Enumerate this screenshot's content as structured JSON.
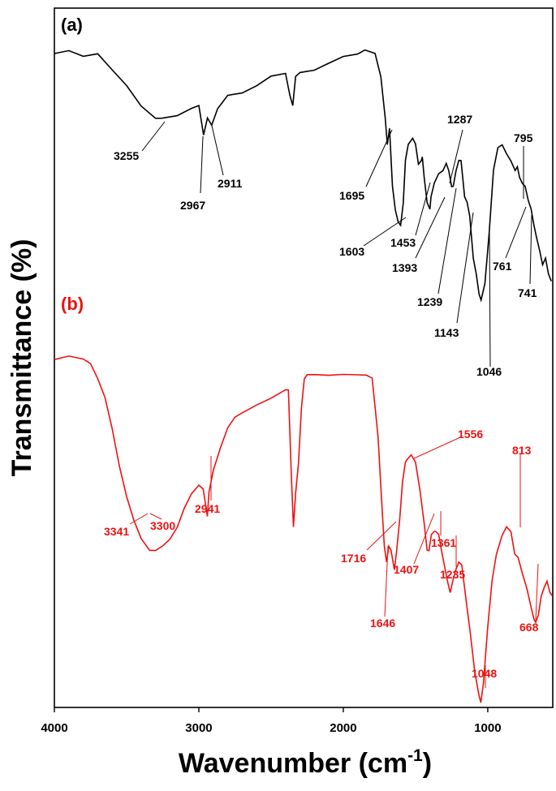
{
  "chart_data": {
    "type": "line",
    "xlabel": "Wavenumber (cm",
    "xlabel_sup": "-1",
    "xlabel_end": ")",
    "ylabel": "Transmittance (%)",
    "xlim": [
      4000,
      550
    ],
    "x_reversed": true,
    "xticks": [
      4000,
      3000,
      2000,
      1000
    ],
    "xtick_labels": [
      "4000",
      "3000",
      "2000",
      "1000"
    ],
    "grid": false,
    "series": [
      {
        "panel_label": "(a)",
        "color": "#000000",
        "points": [
          [
            4000,
            58
          ],
          [
            3900,
            59
          ],
          [
            3800,
            57
          ],
          [
            3700,
            58
          ],
          [
            3600,
            53
          ],
          [
            3500,
            48
          ],
          [
            3400,
            42
          ],
          [
            3300,
            38
          ],
          [
            3255,
            38
          ],
          [
            3150,
            39
          ],
          [
            3050,
            41
          ],
          [
            3000,
            42
          ],
          [
            2967,
            33
          ],
          [
            2940,
            38
          ],
          [
            2911,
            36
          ],
          [
            2870,
            41
          ],
          [
            2800,
            45
          ],
          [
            2700,
            46
          ],
          [
            2600,
            48
          ],
          [
            2500,
            51
          ],
          [
            2400,
            52
          ],
          [
            2370,
            45
          ],
          [
            2350,
            42
          ],
          [
            2330,
            51
          ],
          [
            2300,
            52
          ],
          [
            2200,
            53
          ],
          [
            2100,
            55
          ],
          [
            2000,
            57
          ],
          [
            1900,
            58
          ],
          [
            1850,
            59
          ],
          [
            1780,
            58
          ],
          [
            1740,
            51
          ],
          [
            1710,
            38
          ],
          [
            1695,
            30
          ],
          [
            1680,
            35
          ],
          [
            1660,
            17
          ],
          [
            1640,
            10
          ],
          [
            1620,
            6
          ],
          [
            1603,
            5
          ],
          [
            1585,
            12
          ],
          [
            1570,
            25
          ],
          [
            1550,
            30
          ],
          [
            1520,
            32
          ],
          [
            1500,
            30
          ],
          [
            1480,
            24
          ],
          [
            1460,
            25
          ],
          [
            1453,
            26
          ],
          [
            1440,
            20
          ],
          [
            1420,
            12
          ],
          [
            1400,
            10
          ],
          [
            1393,
            14
          ],
          [
            1370,
            18
          ],
          [
            1340,
            21
          ],
          [
            1310,
            22
          ],
          [
            1287,
            24
          ],
          [
            1270,
            22
          ],
          [
            1250,
            17
          ],
          [
            1239,
            17
          ],
          [
            1220,
            22
          ],
          [
            1200,
            25
          ],
          [
            1185,
            25
          ],
          [
            1160,
            14
          ],
          [
            1143,
            12
          ],
          [
            1125,
            8
          ],
          [
            1100,
            -5
          ],
          [
            1080,
            -10
          ],
          [
            1060,
            -16
          ],
          [
            1046,
            -18
          ],
          [
            1020,
            -13
          ],
          [
            990,
            3
          ],
          [
            960,
            22
          ],
          [
            930,
            29
          ],
          [
            900,
            30
          ],
          [
            870,
            27
          ],
          [
            840,
            25
          ],
          [
            810,
            22
          ],
          [
            795,
            23
          ],
          [
            780,
            20
          ],
          [
            761,
            18
          ],
          [
            741,
            17
          ],
          [
            720,
            13
          ],
          [
            700,
            10
          ],
          [
            680,
            5
          ],
          [
            660,
            1
          ],
          [
            640,
            -3
          ],
          [
            620,
            -7
          ],
          [
            600,
            -5
          ],
          [
            580,
            -10
          ],
          [
            560,
            -12
          ]
        ],
        "annotations": [
          "3255",
          "2967",
          "2911",
          "1695",
          "1603",
          "1453",
          "1393",
          "1287",
          "1239",
          "1143",
          "1046",
          "795",
          "761",
          "741"
        ]
      },
      {
        "panel_label": "(b)",
        "color": "#ee1111",
        "points": [
          [
            4000,
            60
          ],
          [
            3900,
            61
          ],
          [
            3800,
            60
          ],
          [
            3750,
            59
          ],
          [
            3700,
            55
          ],
          [
            3650,
            50
          ],
          [
            3600,
            42
          ],
          [
            3550,
            32
          ],
          [
            3500,
            24
          ],
          [
            3450,
            18
          ],
          [
            3400,
            13
          ],
          [
            3341,
            10
          ],
          [
            3300,
            10
          ],
          [
            3250,
            11
          ],
          [
            3200,
            13
          ],
          [
            3150,
            16
          ],
          [
            3100,
            21
          ],
          [
            3050,
            25
          ],
          [
            3000,
            27
          ],
          [
            2970,
            26
          ],
          [
            2941,
            19
          ],
          [
            2930,
            25
          ],
          [
            2900,
            31
          ],
          [
            2850,
            37
          ],
          [
            2800,
            42
          ],
          [
            2750,
            45
          ],
          [
            2700,
            46
          ],
          [
            2600,
            48
          ],
          [
            2500,
            50
          ],
          [
            2400,
            52
          ],
          [
            2380,
            52
          ],
          [
            2360,
            30
          ],
          [
            2345,
            16
          ],
          [
            2330,
            25
          ],
          [
            2310,
            33
          ],
          [
            2290,
            47
          ],
          [
            2270,
            55
          ],
          [
            2250,
            56
          ],
          [
            2200,
            56
          ],
          [
            2100,
            56
          ],
          [
            2000,
            56
          ],
          [
            1900,
            56
          ],
          [
            1840,
            56
          ],
          [
            1800,
            55
          ],
          [
            1760,
            40
          ],
          [
            1730,
            20
          ],
          [
            1716,
            11
          ],
          [
            1700,
            7
          ],
          [
            1685,
            11
          ],
          [
            1670,
            10
          ],
          [
            1646,
            5
          ],
          [
            1630,
            10
          ],
          [
            1610,
            18
          ],
          [
            1590,
            28
          ],
          [
            1570,
            33
          ],
          [
            1556,
            34
          ],
          [
            1530,
            35
          ],
          [
            1500,
            33
          ],
          [
            1470,
            26
          ],
          [
            1440,
            17
          ],
          [
            1420,
            10
          ],
          [
            1407,
            10
          ],
          [
            1390,
            14
          ],
          [
            1370,
            15
          ],
          [
            1361,
            15
          ],
          [
            1340,
            14
          ],
          [
            1320,
            10
          ],
          [
            1300,
            6
          ],
          [
            1280,
            2
          ],
          [
            1260,
            -1
          ],
          [
            1235,
            3
          ],
          [
            1220,
            5
          ],
          [
            1200,
            7
          ],
          [
            1180,
            6
          ],
          [
            1150,
            -3
          ],
          [
            1120,
            -12
          ],
          [
            1090,
            -22
          ],
          [
            1060,
            -28
          ],
          [
            1048,
            -30
          ],
          [
            1030,
            -25
          ],
          [
            1000,
            -10
          ],
          [
            970,
            2
          ],
          [
            940,
            9
          ],
          [
            900,
            14
          ],
          [
            870,
            16
          ],
          [
            840,
            15
          ],
          [
            813,
            9
          ],
          [
            790,
            8
          ],
          [
            760,
            4
          ],
          [
            730,
            0
          ],
          [
            700,
            -5
          ],
          [
            680,
            -8
          ],
          [
            668,
            -9
          ],
          [
            650,
            -7
          ],
          [
            630,
            -2
          ],
          [
            610,
            0
          ],
          [
            590,
            2
          ],
          [
            570,
            -1
          ],
          [
            555,
            -2
          ]
        ],
        "annotations": [
          "3341",
          "3300",
          "2941",
          "1716",
          "1646",
          "1556",
          "1407",
          "1361",
          "1235",
          "1048",
          "813",
          "668"
        ]
      }
    ]
  }
}
